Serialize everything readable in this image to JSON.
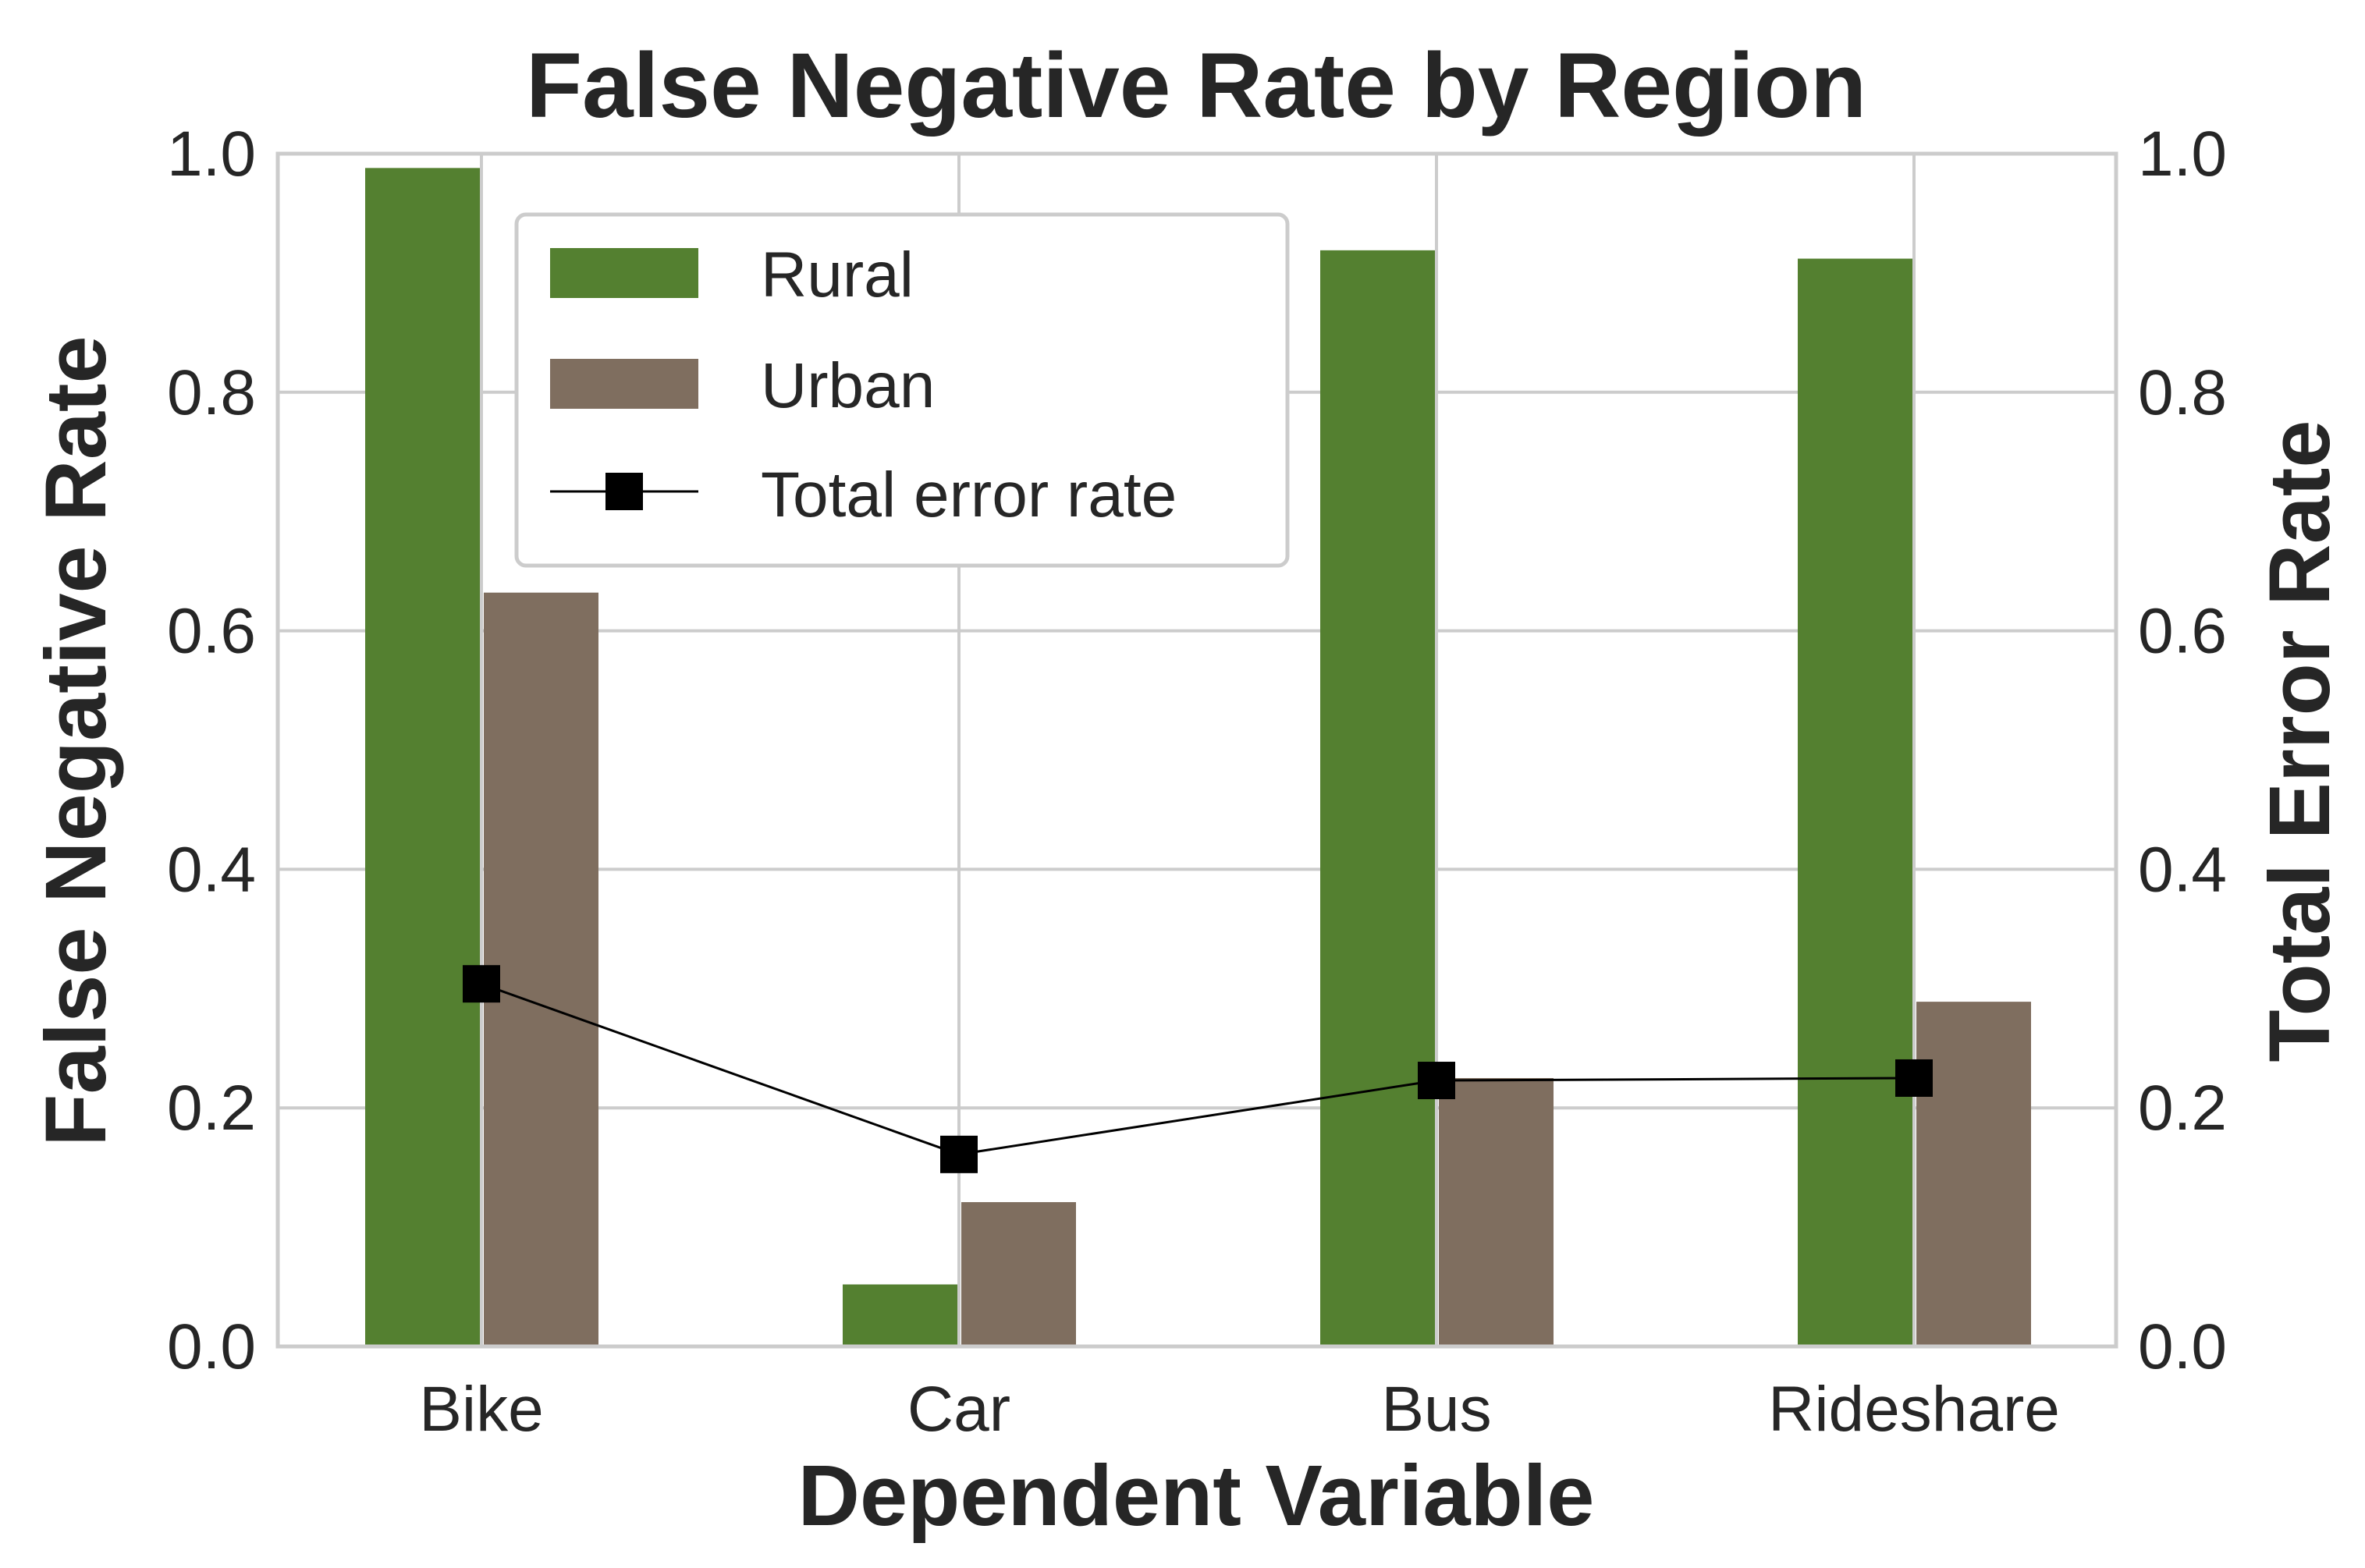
{
  "chart_data": {
    "type": "bar",
    "title": "False Negative Rate by Region",
    "xlabel": "Dependent Variable",
    "ylabel": "False Negative Rate",
    "y2label": "Total Error Rate",
    "categories": [
      "Bike",
      "Car",
      "Bus",
      "Rideshare"
    ],
    "ylim": [
      0,
      1.0
    ],
    "y2lim": [
      0,
      1.0
    ],
    "yticks": [
      "0.0",
      "0.2",
      "0.4",
      "0.6",
      "0.8",
      "1.0"
    ],
    "y2ticks": [
      "0.0",
      "0.2",
      "0.4",
      "0.6",
      "0.8",
      "1.0"
    ],
    "grid": true,
    "legend_position": "top-left",
    "series": [
      {
        "name": "Rural",
        "kind": "bar",
        "color": "#548030",
        "values": [
          0.988,
          0.052,
          0.919,
          0.912
        ]
      },
      {
        "name": "Urban",
        "kind": "bar",
        "color": "#7f6e5f",
        "values": [
          0.632,
          0.121,
          0.225,
          0.289
        ]
      }
    ],
    "line_series": {
      "name": "Total error rate",
      "kind": "line",
      "axis": "right",
      "color": "#000000",
      "marker": "square",
      "values": [
        0.304,
        0.161,
        0.223,
        0.225
      ]
    }
  }
}
